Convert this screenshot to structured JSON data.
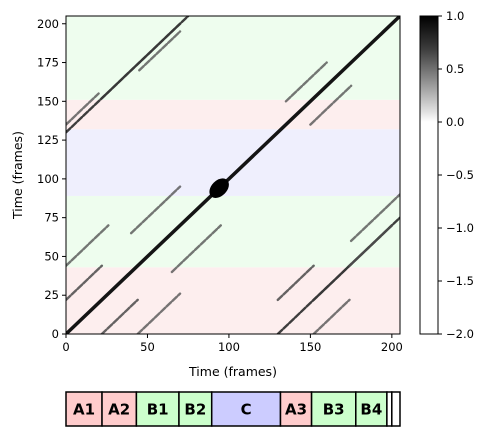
{
  "chart_data": [
    {
      "type": "heatmap",
      "xlabel": "Time (frames)",
      "ylabel": "Time (frames)",
      "xlim": [
        0,
        205
      ],
      "ylim": [
        0,
        205
      ],
      "x_ticks": [
        0,
        50,
        100,
        150,
        200
      ],
      "y_ticks": [
        0,
        25,
        50,
        75,
        100,
        125,
        150,
        175,
        200
      ],
      "x_tick_labels": [
        "0",
        "50",
        "100",
        "150",
        "200"
      ],
      "y_tick_labels": [
        "0",
        "25",
        "50",
        "75",
        "100",
        "125",
        "150",
        "175",
        "200"
      ],
      "colorbar": {
        "range": [
          -2.0,
          1.0
        ],
        "ticks": [
          1.0,
          0.5,
          0.0,
          -0.5,
          -1.0,
          -1.5,
          -2.0
        ],
        "tick_labels": [
          "1.0",
          "0.5",
          "0.0",
          "−0.5",
          "−1.0",
          "−1.5",
          "−2.0"
        ]
      },
      "background_bands": [
        {
          "y0": 0,
          "y1": 43,
          "color": "#fdeeee"
        },
        {
          "y0": 43,
          "y1": 89,
          "color": "#eefdee"
        },
        {
          "y0": 89,
          "y1": 132,
          "color": "#efeffd"
        },
        {
          "y0": 132,
          "y1": 151,
          "color": "#fdeeee"
        },
        {
          "y0": 151,
          "y1": 205,
          "color": "#eefdee"
        }
      ],
      "diagonal_lines": [
        {
          "x0": 0,
          "y0": 0,
          "x1": 205,
          "y1": 205,
          "strength": 1.0
        },
        {
          "x0": 0,
          "y0": 130,
          "x1": 75,
          "y1": 205,
          "strength": 0.8
        },
        {
          "x0": 130,
          "y0": 0,
          "x1": 205,
          "y1": 75,
          "strength": 0.8
        },
        {
          "x0": 22,
          "y0": 152,
          "x1": 70,
          "y1": 200,
          "strength": 0.7
        },
        {
          "x0": 152,
          "y0": 22,
          "x1": 200,
          "y1": 70,
          "strength": 0.7
        },
        {
          "x0": 0,
          "y0": 22,
          "x1": 22,
          "y1": 44,
          "strength": 0.6
        },
        {
          "x0": 22,
          "y0": 0,
          "x1": 44,
          "y1": 22,
          "strength": 0.6
        },
        {
          "x0": 44,
          "y0": 0,
          "x1": 70,
          "y1": 26,
          "strength": 0.5
        },
        {
          "x0": 0,
          "y0": 44,
          "x1": 26,
          "y1": 70,
          "strength": 0.5
        },
        {
          "x0": 40,
          "y0": 65,
          "x1": 70,
          "y1": 95,
          "strength": 0.5
        },
        {
          "x0": 65,
          "y0": 40,
          "x1": 95,
          "y1": 70,
          "strength": 0.5
        },
        {
          "x0": 130,
          "y0": 22,
          "x1": 152,
          "y1": 44,
          "strength": 0.6
        },
        {
          "x0": 152,
          "y0": 0,
          "x1": 174,
          "y1": 22,
          "strength": 0.5
        },
        {
          "x0": 174,
          "y0": 44,
          "x1": 200,
          "y1": 70,
          "strength": 0.5
        },
        {
          "x0": 45,
          "y0": 170,
          "x1": 70,
          "y1": 195,
          "strength": 0.5
        },
        {
          "x0": 150,
          "y0": 135,
          "x1": 175,
          "y1": 160,
          "strength": 0.5
        },
        {
          "x0": 135,
          "y0": 150,
          "x1": 160,
          "y1": 175,
          "strength": 0.5
        },
        {
          "x0": 0,
          "y0": 135,
          "x1": 20,
          "y1": 155,
          "strength": 0.5
        },
        {
          "x0": 175,
          "y0": 60,
          "x1": 205,
          "y1": 90,
          "strength": 0.5
        }
      ],
      "blobs": [
        {
          "x": 94,
          "y": 94,
          "rx": 7,
          "ry": 5,
          "strength": 1.0
        }
      ]
    },
    {
      "type": "table",
      "segments": [
        {
          "label": "A1",
          "start": 0,
          "end": 22,
          "color": "#ffcccc"
        },
        {
          "label": "A2",
          "start": 22,
          "end": 43,
          "color": "#ffcccc"
        },
        {
          "label": "B1",
          "start": 43,
          "end": 69,
          "color": "#ccffcc"
        },
        {
          "label": "B2",
          "start": 69,
          "end": 89,
          "color": "#ccffcc"
        },
        {
          "label": "C",
          "start": 89,
          "end": 131,
          "color": "#ccccff"
        },
        {
          "label": "A3",
          "start": 131,
          "end": 150,
          "color": "#ffcccc"
        },
        {
          "label": "B3",
          "start": 150,
          "end": 177,
          "color": "#ccffcc"
        },
        {
          "label": "B4",
          "start": 177,
          "end": 196,
          "color": "#ccffcc"
        },
        {
          "label": "",
          "start": 196,
          "end": 199,
          "color": "#ffffff"
        },
        {
          "label": "",
          "start": 199,
          "end": 204,
          "color": "#ffffff"
        }
      ]
    }
  ]
}
